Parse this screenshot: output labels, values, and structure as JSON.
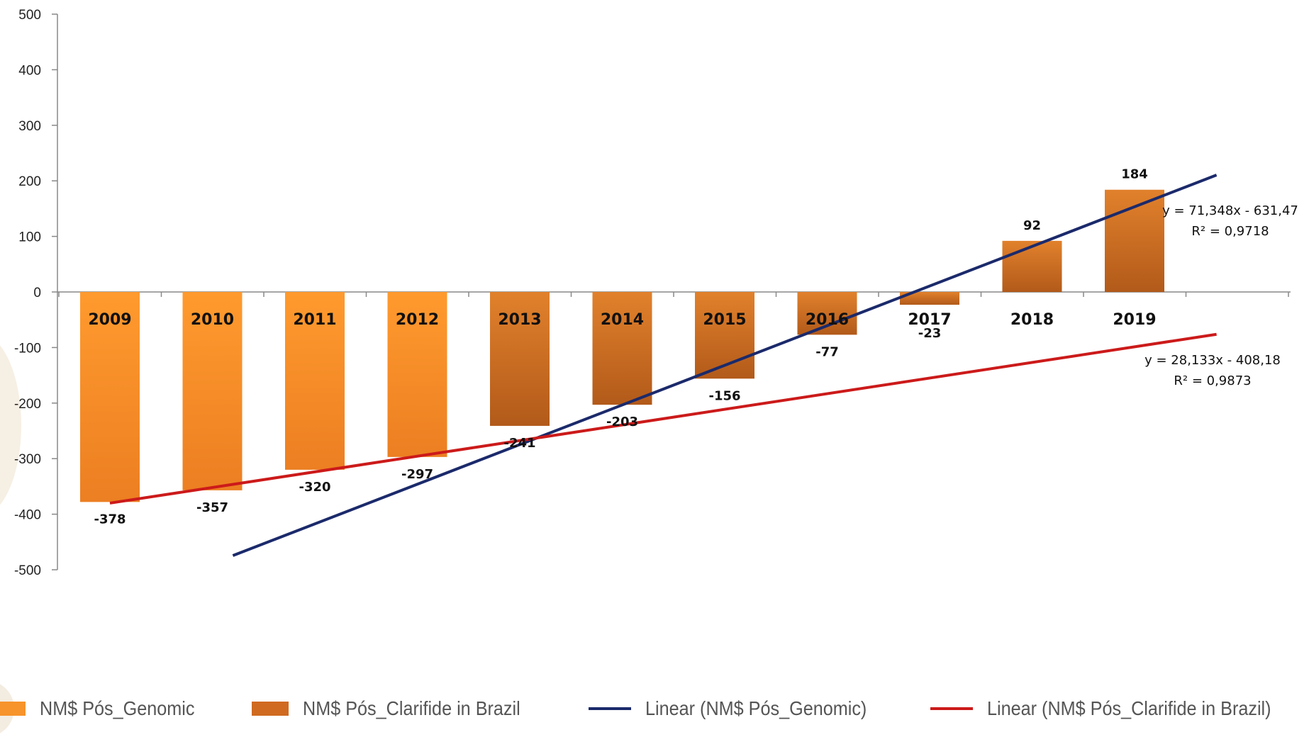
{
  "chart_data": {
    "type": "bar",
    "categories": [
      "2009",
      "2010",
      "2011",
      "2012",
      "2013",
      "2014",
      "2015",
      "2016",
      "2017",
      "2018",
      "2019"
    ],
    "series": [
      {
        "name": "NM$ Pós_Genomic",
        "values": [
          -378,
          -357,
          -320,
          -297,
          null,
          null,
          null,
          null,
          null,
          null,
          null
        ],
        "color": "#f7942b"
      },
      {
        "name": "NM$ Pós_Clarifide in Brazil",
        "values": [
          null,
          null,
          null,
          null,
          -241,
          -203,
          -156,
          -77,
          -23,
          92,
          184
        ],
        "color": "#d06a20"
      }
    ],
    "data_labels": [
      "-378",
      "-357",
      "-320",
      "-297",
      "-241",
      "-203",
      "-156",
      "-77",
      "-23",
      "92",
      "184"
    ],
    "y_ticks": [
      "500",
      "400",
      "300",
      "200",
      "100",
      "0",
      "-100",
      "-200",
      "-300",
      "-400",
      "-500"
    ],
    "ylim": [
      -500,
      500
    ],
    "trendlines": [
      {
        "name": "Linear (NM$ Pós_Genomic)",
        "slope": 71.348,
        "intercept": -631.47,
        "equation": "y = 71,348x - 631,47",
        "r2": "R² = 0,9718",
        "color": "#1b2a6b"
      },
      {
        "name": "Linear (NM$ Pós_Clarifide in Brazil)",
        "slope": 28.133,
        "intercept": -408.18,
        "equation": "y = 28,133x - 408,18",
        "r2": "R² = 0,9873",
        "color": "#cc1a1a"
      }
    ],
    "legend_position": "bottom"
  },
  "legend": [
    {
      "label": "NM$ Pós_Genomic",
      "kind": "bar",
      "color": "#f7942b"
    },
    {
      "label": "NM$ Pós_Clarifide in Brazil",
      "kind": "bar",
      "color": "#d06a20"
    },
    {
      "label": "Linear (NM$ Pós_Genomic)",
      "kind": "line",
      "color": "#1b2a6b"
    },
    {
      "label": "Linear (NM$ Pós_Clarifide in Brazil)",
      "kind": "line",
      "color": "#cc1a1a"
    }
  ]
}
